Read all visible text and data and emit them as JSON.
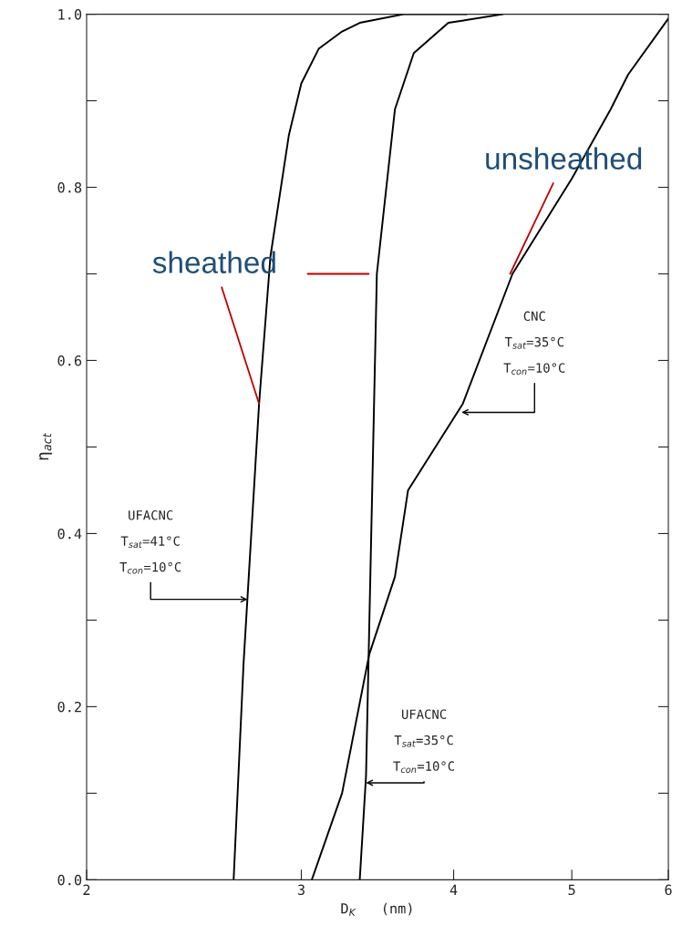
{
  "chart_data": {
    "type": "line",
    "xlabel": "D$_{K}$   (nm)",
    "ylabel": "η$_{act}$",
    "log": "x",
    "xlim": [
      2,
      6
    ],
    "xticks": [
      2,
      3,
      4,
      5,
      6
    ],
    "ylim": [
      0,
      1
    ],
    "yticks": [
      {
        "value": 0,
        "label": "0.0"
      },
      {
        "value": 0.1,
        "label": null
      },
      {
        "value": 0.2,
        "label": "0.2"
      },
      {
        "value": 0.3,
        "label": null
      },
      {
        "value": 0.4,
        "label": "0.4"
      },
      {
        "value": 0.5,
        "label": null
      },
      {
        "value": 0.6,
        "label": "0.6"
      },
      {
        "value": 0.7,
        "label": null
      },
      {
        "value": 0.8,
        "label": "0.8"
      },
      {
        "value": 0.9,
        "label": null
      },
      {
        "value": 1.0,
        "label": "1.0"
      }
    ],
    "grid": false,
    "legend": false,
    "marker": "none",
    "line_style": "solid",
    "series": [
      {
        "color": "#000000",
        "x": [
          2.64,
          2.69,
          2.77,
          2.83,
          2.93,
          3.0,
          3.1,
          3.24,
          3.35,
          3.64,
          4.1
        ],
        "values": [
          0,
          0.25,
          0.55,
          0.72,
          0.86,
          0.92,
          0.96,
          0.98,
          0.99,
          1.0,
          1.0
        ]
      },
      {
        "color": "#000000",
        "x": [
          3.35,
          3.39,
          3.46,
          3.58,
          3.71,
          3.96,
          4.39
        ],
        "values": [
          0,
          0.12,
          0.7,
          0.89,
          0.955,
          0.99,
          1.0
        ]
      },
      {
        "color": "#000000",
        "x": [
          3.06,
          3.24,
          3.41,
          3.58,
          3.67,
          4.07,
          4.47,
          5.0,
          5.38,
          5.56,
          6.0
        ],
        "values": [
          0,
          0.1,
          0.26,
          0.35,
          0.45,
          0.55,
          0.7,
          0.81,
          0.89,
          0.93,
          0.995
        ]
      }
    ],
    "annotations": [
      "UFACNC",
      "T$_{sat}$=41°C",
      {
        "text": "T$_{con}$=10°C",
        "x": 2.71,
        "y": 0.324
      },
      "UFACNC",
      "T$_{sat}$=35°C",
      {
        "text": "T$_{con}$=10°C",
        "x": 3.39,
        "y": 0.112
      },
      "CNC",
      "T$_{sat}$=35°C",
      {
        "text": "T$_{con}$=10°C",
        "x": 4.06,
        "y": 0.54
      },
      {
        "text": "sheathed",
        "x": 2.77,
        "y": 0.55
      },
      {
        "text": "unsheathed",
        "x": 4.45,
        "y": 0.7
      }
    ]
  }
}
